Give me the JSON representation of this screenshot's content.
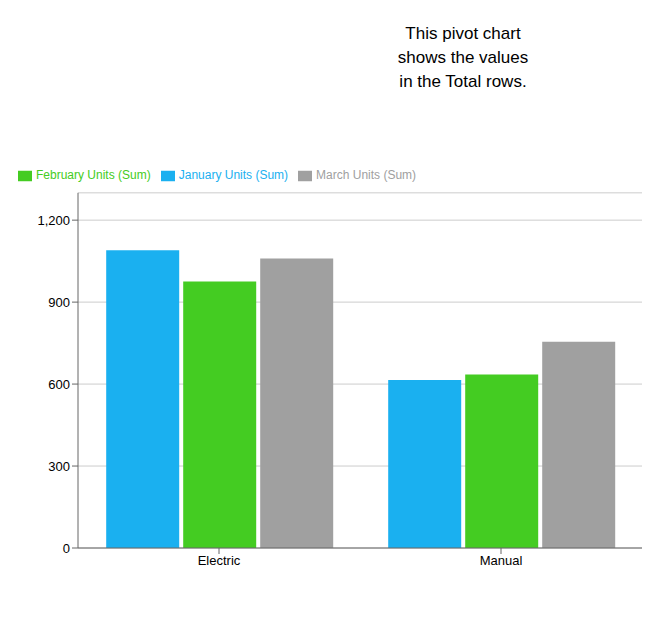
{
  "chart_data": {
    "type": "bar",
    "categories": [
      "Electric",
      "Manual"
    ],
    "series": [
      {
        "name": "January Units (Sum)",
        "color": "#1ab0f0",
        "values": [
          1090,
          615
        ]
      },
      {
        "name": "February Units (Sum)",
        "color": "#44cc22",
        "values": [
          975,
          635
        ]
      },
      {
        "name": "March Units (Sum)",
        "color": "#a0a0a0",
        "values": [
          1060,
          755
        ]
      }
    ],
    "ylim": [
      0,
      1300
    ],
    "yticks": [
      0,
      300,
      600,
      900,
      {
        "value": 1200,
        "label": "1,200"
      }
    ],
    "grid": true,
    "legend": "top left",
    "annotation": "This pivot chart\nshows the values\nin the Total rows."
  }
}
